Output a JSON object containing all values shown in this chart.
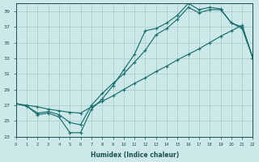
{
  "background_color": "#cce8e8",
  "grid_color": "#b0d4d4",
  "line_color": "#1a7070",
  "xlabel": "Humidex (Indice chaleur)",
  "ylim": [
    23,
    40
  ],
  "xlim": [
    0,
    22
  ],
  "yticks": [
    23,
    25,
    27,
    29,
    31,
    33,
    35,
    37,
    39
  ],
  "xticks": [
    0,
    1,
    2,
    3,
    4,
    5,
    6,
    7,
    8,
    9,
    10,
    11,
    12,
    13,
    14,
    15,
    16,
    17,
    18,
    19,
    20,
    21,
    22
  ],
  "line1_x": [
    0,
    1,
    2,
    3,
    4,
    5,
    6,
    7,
    8,
    9,
    10,
    11,
    12,
    13,
    14,
    15,
    16,
    17,
    18,
    19,
    20,
    21,
    22
  ],
  "line1_y": [
    27.2,
    27.0,
    26.8,
    26.5,
    26.3,
    26.1,
    26.0,
    26.8,
    27.5,
    28.2,
    29.0,
    29.8,
    30.5,
    31.3,
    32.0,
    32.8,
    33.5,
    34.2,
    35.0,
    35.8,
    36.5,
    37.2,
    33.0
  ],
  "line2_x": [
    0,
    1,
    2,
    3,
    4,
    5,
    6,
    7,
    8,
    9,
    10,
    11,
    12,
    13,
    14,
    15,
    16,
    17,
    18,
    19,
    20,
    21,
    22
  ],
  "line2_y": [
    27.2,
    26.9,
    25.8,
    26.0,
    25.5,
    23.5,
    23.5,
    26.5,
    27.8,
    29.5,
    31.5,
    33.5,
    36.5,
    36.8,
    37.5,
    38.5,
    40.0,
    39.2,
    39.5,
    39.3,
    37.5,
    37.0,
    33.0
  ],
  "line3_x": [
    0,
    1,
    2,
    3,
    4,
    5,
    6,
    7,
    8,
    9,
    10,
    11,
    12,
    13,
    14,
    15,
    16,
    17,
    18,
    19,
    20,
    21,
    22
  ],
  "line3_y": [
    27.2,
    26.9,
    26.0,
    26.2,
    25.8,
    24.8,
    24.5,
    27.0,
    28.5,
    29.8,
    31.0,
    32.5,
    34.0,
    36.0,
    36.8,
    38.0,
    39.5,
    38.8,
    39.2,
    39.2,
    37.5,
    36.8,
    33.0
  ]
}
